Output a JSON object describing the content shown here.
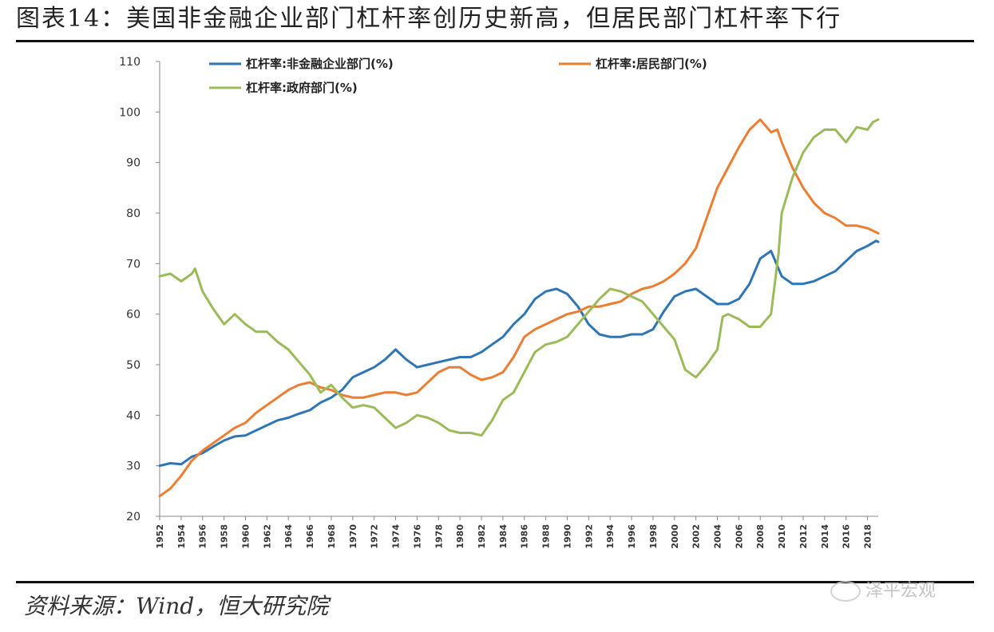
{
  "header": {
    "title": "图表14：美国非金融企业部门杠杆率创历史新高，但居民部门杠杆率下行"
  },
  "footer": {
    "source": "资料来源：Wind，恒大研究院",
    "watermark": "泽平宏观"
  },
  "colors": {
    "corporate": "#2E75B6",
    "household": "#ED7D31",
    "government": "#9BBB59",
    "axis": "#888888"
  },
  "chart_data": {
    "type": "line",
    "ylim": [
      20,
      110
    ],
    "yticks": [
      20,
      30,
      40,
      50,
      60,
      70,
      80,
      90,
      100,
      110
    ],
    "xlim": [
      1952,
      2019
    ],
    "xticks": [
      "1952",
      "1954",
      "1956",
      "1958",
      "1960",
      "1962",
      "1964",
      "1966",
      "1968",
      "1970",
      "1972",
      "1974",
      "1976",
      "1978",
      "1980",
      "1982",
      "1984",
      "1986",
      "1988",
      "1990",
      "1992",
      "1994",
      "1996",
      "1998",
      "2000",
      "2002",
      "2004",
      "2006",
      "2008",
      "2010",
      "2012",
      "2014",
      "2016",
      "2018"
    ],
    "legend_position": "top",
    "series": [
      {
        "name": "杠杆率:非金融企业部门(%)",
        "color": "#2E75B6",
        "points": [
          [
            1952,
            30
          ],
          [
            1953,
            30.5
          ],
          [
            1954,
            30.3
          ],
          [
            1955,
            31.8
          ],
          [
            1956,
            32.5
          ],
          [
            1957,
            33.8
          ],
          [
            1958,
            35
          ],
          [
            1959,
            35.8
          ],
          [
            1960,
            36
          ],
          [
            1961,
            37
          ],
          [
            1962,
            38
          ],
          [
            1963,
            39
          ],
          [
            1964,
            39.5
          ],
          [
            1965,
            40.3
          ],
          [
            1966,
            41
          ],
          [
            1967,
            42.5
          ],
          [
            1968,
            43.5
          ],
          [
            1969,
            45
          ],
          [
            1970,
            47.5
          ],
          [
            1971,
            48.5
          ],
          [
            1972,
            49.5
          ],
          [
            1973,
            51
          ],
          [
            1974,
            53
          ],
          [
            1975,
            51
          ],
          [
            1976,
            49.5
          ],
          [
            1977,
            50
          ],
          [
            1978,
            50.5
          ],
          [
            1979,
            51
          ],
          [
            1980,
            51.5
          ],
          [
            1981,
            51.5
          ],
          [
            1982,
            52.5
          ],
          [
            1983,
            54
          ],
          [
            1984,
            55.5
          ],
          [
            1985,
            58
          ],
          [
            1986,
            60
          ],
          [
            1987,
            63
          ],
          [
            1988,
            64.5
          ],
          [
            1989,
            65
          ],
          [
            1990,
            64
          ],
          [
            1991,
            61.5
          ],
          [
            1992,
            58
          ],
          [
            1993,
            56
          ],
          [
            1994,
            55.5
          ],
          [
            1995,
            55.5
          ],
          [
            1996,
            56
          ],
          [
            1997,
            56
          ],
          [
            1998,
            57
          ],
          [
            1999,
            60.5
          ],
          [
            2000,
            63.5
          ],
          [
            2001,
            64.5
          ],
          [
            2002,
            65
          ],
          [
            2003,
            63.5
          ],
          [
            2004,
            62
          ],
          [
            2005,
            62
          ],
          [
            2006,
            63
          ],
          [
            2007,
            66
          ],
          [
            2008,
            71
          ],
          [
            2009,
            72.5
          ],
          [
            2010,
            67.5
          ],
          [
            2011,
            66
          ],
          [
            2012,
            66
          ],
          [
            2013,
            66.5
          ],
          [
            2014,
            67.5
          ],
          [
            2015,
            68.5
          ],
          [
            2016,
            70.5
          ],
          [
            2017,
            72.5
          ],
          [
            2018,
            73.5
          ],
          [
            2018.8,
            74.5
          ],
          [
            2019,
            74.3
          ]
        ]
      },
      {
        "name": "杠杆率:居民部门(%)",
        "color": "#ED7D31",
        "points": [
          [
            1952,
            24
          ],
          [
            1953,
            25.5
          ],
          [
            1954,
            28
          ],
          [
            1955,
            31
          ],
          [
            1956,
            33
          ],
          [
            1957,
            34.5
          ],
          [
            1958,
            36
          ],
          [
            1959,
            37.5
          ],
          [
            1960,
            38.5
          ],
          [
            1961,
            40.5
          ],
          [
            1962,
            42
          ],
          [
            1963,
            43.5
          ],
          [
            1964,
            45
          ],
          [
            1965,
            46
          ],
          [
            1966,
            46.5
          ],
          [
            1967,
            45.5
          ],
          [
            1968,
            45
          ],
          [
            1969,
            44
          ],
          [
            1970,
            43.5
          ],
          [
            1971,
            43.5
          ],
          [
            1972,
            44
          ],
          [
            1973,
            44.5
          ],
          [
            1974,
            44.5
          ],
          [
            1975,
            44
          ],
          [
            1976,
            44.5
          ],
          [
            1977,
            46.5
          ],
          [
            1978,
            48.5
          ],
          [
            1979,
            49.5
          ],
          [
            1980,
            49.5
          ],
          [
            1981,
            48
          ],
          [
            1982,
            47
          ],
          [
            1983,
            47.5
          ],
          [
            1984,
            48.5
          ],
          [
            1985,
            51.5
          ],
          [
            1986,
            55.5
          ],
          [
            1987,
            57
          ],
          [
            1988,
            58
          ],
          [
            1989,
            59
          ],
          [
            1990,
            60
          ],
          [
            1991,
            60.5
          ],
          [
            1992,
            61.5
          ],
          [
            1993,
            61.5
          ],
          [
            1994,
            62
          ],
          [
            1995,
            62.5
          ],
          [
            1996,
            64
          ],
          [
            1997,
            65
          ],
          [
            1998,
            65.5
          ],
          [
            1999,
            66.5
          ],
          [
            2000,
            68
          ],
          [
            2001,
            70
          ],
          [
            2002,
            73
          ],
          [
            2003,
            79
          ],
          [
            2004,
            85
          ],
          [
            2005,
            89
          ],
          [
            2006,
            93
          ],
          [
            2007,
            96.5
          ],
          [
            2008,
            98.5
          ],
          [
            2009,
            96
          ],
          [
            2009.6,
            96.5
          ],
          [
            2010,
            94
          ],
          [
            2011,
            89
          ],
          [
            2012,
            85
          ],
          [
            2013,
            82
          ],
          [
            2014,
            80
          ],
          [
            2015,
            79
          ],
          [
            2016,
            77.5
          ],
          [
            2017,
            77.5
          ],
          [
            2018,
            77
          ],
          [
            2019,
            76
          ]
        ]
      },
      {
        "name": "杠杆率:政府部门(%)",
        "color": "#9BBB59",
        "points": [
          [
            1952,
            67.5
          ],
          [
            1953,
            68
          ],
          [
            1954,
            66.5
          ],
          [
            1955,
            68
          ],
          [
            1955.3,
            69
          ],
          [
            1956,
            64.5
          ],
          [
            1957,
            61
          ],
          [
            1958,
            58
          ],
          [
            1959,
            60
          ],
          [
            1960,
            58
          ],
          [
            1961,
            56.5
          ],
          [
            1962,
            56.5
          ],
          [
            1963,
            54.5
          ],
          [
            1964,
            53
          ],
          [
            1965,
            50.5
          ],
          [
            1966,
            48
          ],
          [
            1967,
            44.5
          ],
          [
            1968,
            46
          ],
          [
            1969,
            43.5
          ],
          [
            1970,
            41.5
          ],
          [
            1971,
            42
          ],
          [
            1972,
            41.5
          ],
          [
            1973,
            39.5
          ],
          [
            1974,
            37.5
          ],
          [
            1975,
            38.5
          ],
          [
            1976,
            40
          ],
          [
            1977,
            39.5
          ],
          [
            1978,
            38.5
          ],
          [
            1979,
            37
          ],
          [
            1980,
            36.5
          ],
          [
            1981,
            36.5
          ],
          [
            1982,
            36
          ],
          [
            1983,
            39
          ],
          [
            1984,
            43
          ],
          [
            1985,
            44.5
          ],
          [
            1986,
            48.5
          ],
          [
            1987,
            52.5
          ],
          [
            1988,
            54
          ],
          [
            1989,
            54.5
          ],
          [
            1990,
            55.5
          ],
          [
            1991,
            58
          ],
          [
            1992,
            60.5
          ],
          [
            1993,
            63
          ],
          [
            1994,
            65
          ],
          [
            1995,
            64.5
          ],
          [
            1996,
            63.5
          ],
          [
            1997,
            62.5
          ],
          [
            1998,
            60
          ],
          [
            1999,
            57.5
          ],
          [
            2000,
            55
          ],
          [
            2001,
            49
          ],
          [
            2002,
            47.5
          ],
          [
            2003,
            50
          ],
          [
            2004,
            53
          ],
          [
            2004.5,
            59.5
          ],
          [
            2005,
            60
          ],
          [
            2006,
            59
          ],
          [
            2007,
            57.5
          ],
          [
            2008,
            57.5
          ],
          [
            2009,
            60
          ],
          [
            2009.7,
            72
          ],
          [
            2010,
            80
          ],
          [
            2011,
            87
          ],
          [
            2012,
            92
          ],
          [
            2013,
            95
          ],
          [
            2014,
            96.5
          ],
          [
            2015,
            96.5
          ],
          [
            2016,
            94
          ],
          [
            2017,
            97
          ],
          [
            2018,
            96.5
          ],
          [
            2018.5,
            98
          ],
          [
            2019,
            98.5
          ]
        ]
      }
    ]
  }
}
